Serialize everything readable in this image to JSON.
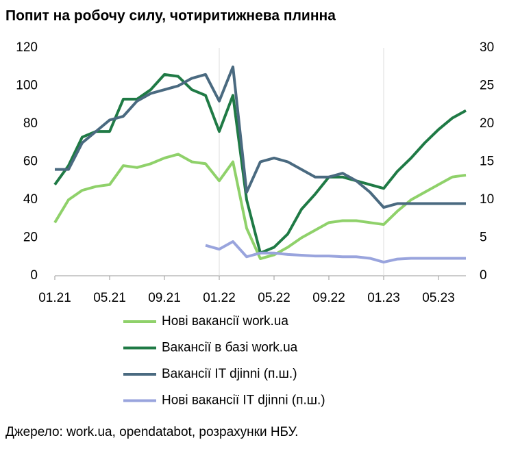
{
  "chart_data": {
    "type": "line",
    "title": "Попит на робочу силу, чотиритижнева плинна",
    "source": "Джерело: work.ua, opendatabot, розрахунки НБУ.",
    "categories": [
      "01.21",
      null,
      null,
      null,
      "05.21",
      null,
      null,
      null,
      "09.21",
      null,
      null,
      null,
      "01.22",
      null,
      null,
      null,
      "05.22",
      null,
      null,
      null,
      "09.22",
      null,
      null,
      null,
      "01.23",
      null,
      null,
      null,
      "05.23",
      null,
      null
    ],
    "ylim": [
      0,
      120
    ],
    "yticks": [
      0,
      20,
      40,
      60,
      80,
      100,
      120
    ],
    "y2lim": [
      0,
      30
    ],
    "y2ticks": [
      0,
      5,
      10,
      15,
      20,
      25,
      30
    ],
    "legend": "bottom",
    "series": [
      {
        "name": "Нові вакансії work.ua",
        "color": "#8fd16a",
        "values": [
          28,
          40,
          45,
          47,
          48,
          58,
          57,
          59,
          62,
          64,
          60,
          59,
          50,
          60,
          25,
          9,
          11,
          15,
          20,
          24,
          28,
          29,
          29,
          28,
          27,
          34,
          40,
          44,
          48,
          52,
          53
        ]
      },
      {
        "name": "Вакансії в базі work.ua",
        "color": "#1f7a45",
        "values": [
          48,
          58,
          73,
          76,
          76,
          93,
          93,
          98,
          106,
          105,
          98,
          95,
          76,
          95,
          40,
          12,
          15,
          22,
          35,
          43,
          52,
          52,
          50,
          48,
          46,
          55,
          62,
          70,
          77,
          83,
          87
        ]
      },
      {
        "name": "Вакансії IT djinni (п.ш.)",
        "color": "#4a6a80",
        "axis": "y2",
        "values": [
          14,
          14,
          17.5,
          19,
          20.5,
          21,
          23,
          24,
          24.5,
          25,
          26,
          26.5,
          23,
          27.5,
          11,
          15,
          15.5,
          15,
          14,
          13,
          13,
          13.5,
          12.5,
          11,
          9,
          9.5,
          9.5,
          9.5,
          9.5,
          9.5,
          9.5
        ]
      },
      {
        "name": "Нові вакансії IT djinni (п.ш.)",
        "color": "#99a4dd",
        "axis": "y2",
        "values": [
          null,
          null,
          null,
          null,
          null,
          null,
          null,
          null,
          null,
          null,
          null,
          4,
          3.5,
          4.5,
          2.5,
          3,
          3,
          2.8,
          2.7,
          2.6,
          2.6,
          2.5,
          2.5,
          2.3,
          1.8,
          2.2,
          2.3,
          2.3,
          2.3,
          2.3,
          2.3
        ]
      }
    ]
  }
}
